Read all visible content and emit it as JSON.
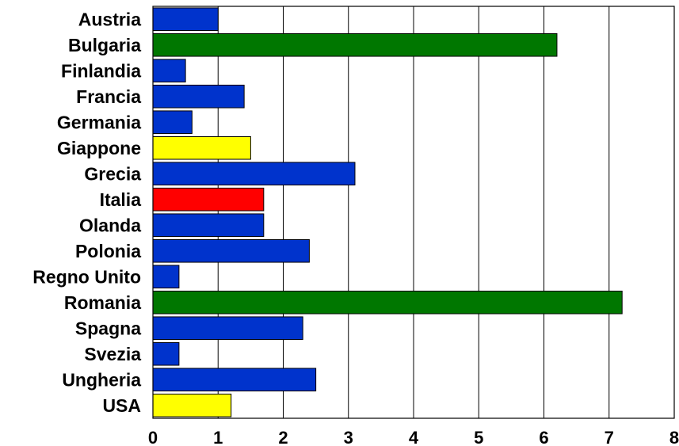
{
  "chart_data": {
    "type": "bar",
    "orientation": "horizontal",
    "title": "",
    "xlabel": "",
    "ylabel": "",
    "xlim": [
      0,
      8
    ],
    "xticks": [
      "0",
      "1",
      "2",
      "3",
      "4",
      "5",
      "6",
      "7",
      "8"
    ],
    "grid": "vertical",
    "legend": "none",
    "categories": [
      "Austria",
      "Bulgaria",
      "Finlandia",
      "Francia",
      "Germania",
      "Giappone",
      "Grecia",
      "Italia",
      "Olanda",
      "Polonia",
      "Regno Unito",
      "Romania",
      "Spagna",
      "Svezia",
      "Ungheria",
      "USA"
    ],
    "values": [
      1.0,
      6.2,
      0.5,
      1.4,
      0.6,
      1.5,
      3.1,
      1.7,
      1.7,
      2.4,
      0.4,
      7.2,
      2.3,
      0.4,
      2.5,
      1.2
    ],
    "colors": [
      "#0033cc",
      "#007700",
      "#0033cc",
      "#0033cc",
      "#0033cc",
      "#ffff00",
      "#0033cc",
      "#ff0000",
      "#0033cc",
      "#0033cc",
      "#0033cc",
      "#007700",
      "#0033cc",
      "#0033cc",
      "#0033cc",
      "#ffff00"
    ]
  }
}
